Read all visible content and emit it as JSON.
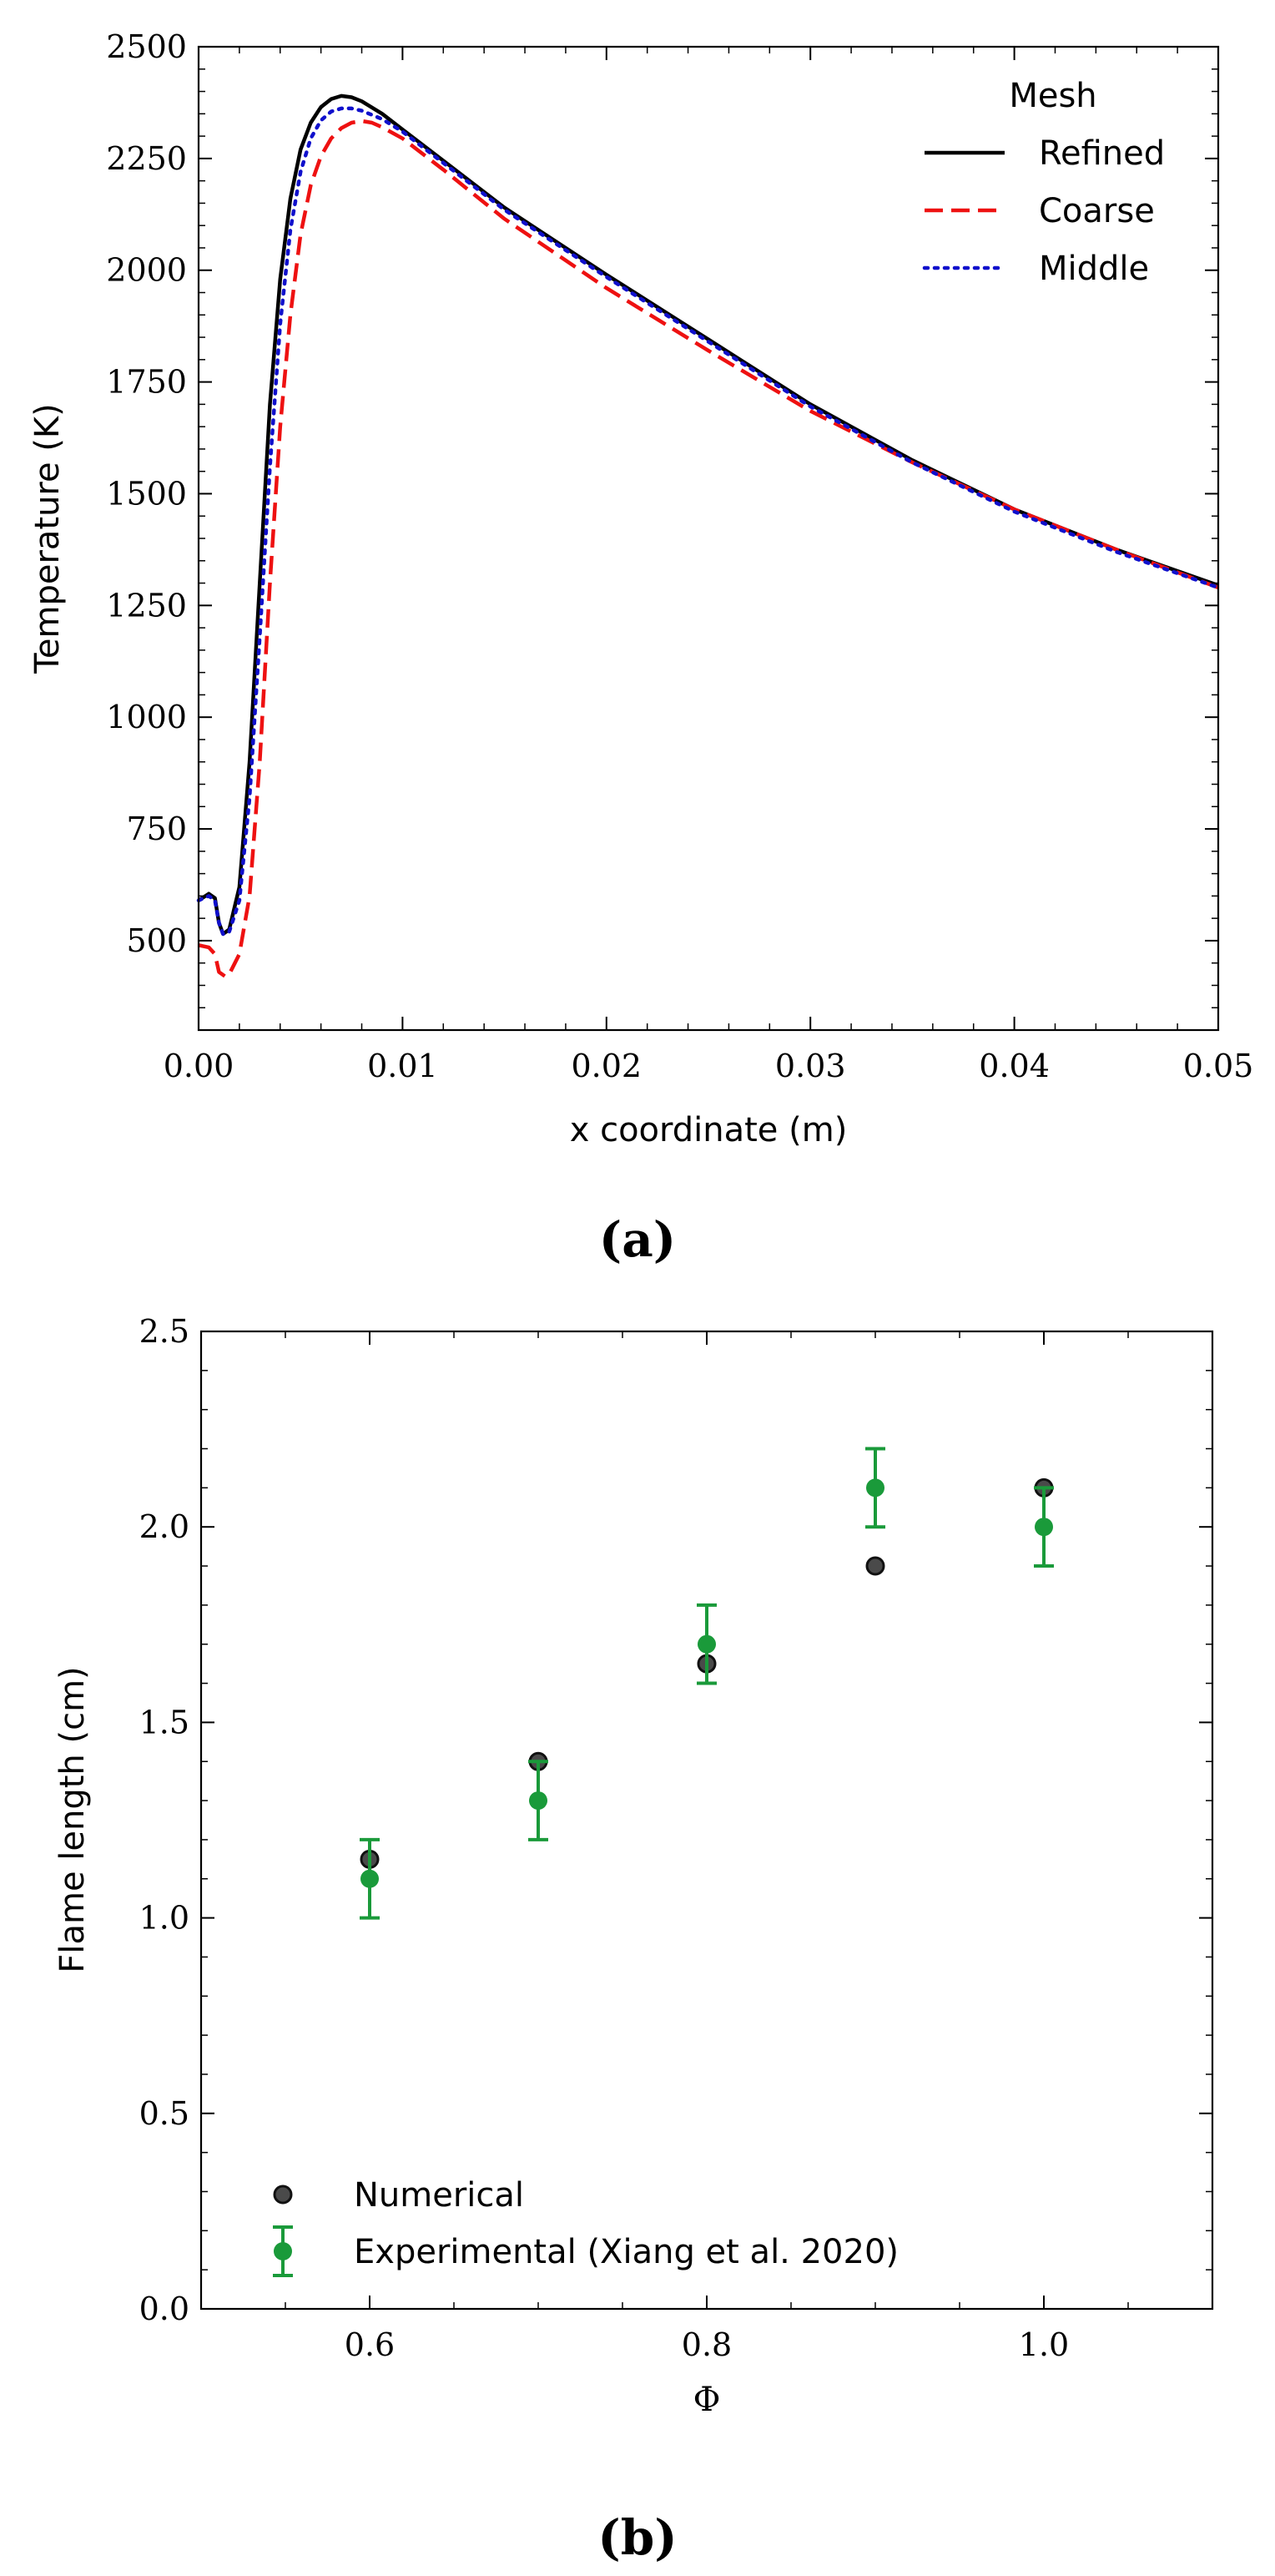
{
  "chart_data": [
    {
      "type": "line",
      "panel_label": "(a)",
      "title": "",
      "xlabel": "x coordinate (m)",
      "ylabel": "Temperature (K)",
      "xlim": [
        0,
        0.05
      ],
      "ylim": [
        300,
        2500
      ],
      "xticks": [
        "0.00",
        "0.01",
        "0.02",
        "0.03",
        "0.04",
        "0.05"
      ],
      "yticks": [
        "500",
        "750",
        "1000",
        "1250",
        "1500",
        "1750",
        "2000",
        "2250",
        "2500"
      ],
      "grid": false,
      "legend": {
        "title": "Mesh",
        "position": "top-right"
      },
      "series": [
        {
          "name": "Refined",
          "color": "#000000",
          "style": "solid",
          "x": [
            0,
            0.0005,
            0.0008,
            0.001,
            0.0012,
            0.0015,
            0.002,
            0.0025,
            0.003,
            0.0035,
            0.004,
            0.0045,
            0.005,
            0.0055,
            0.006,
            0.0065,
            0.007,
            0.0075,
            0.008,
            0.009,
            0.01,
            0.012,
            0.015,
            0.02,
            0.025,
            0.03,
            0.035,
            0.04,
            0.045,
            0.05
          ],
          "y": [
            590,
            605,
            595,
            540,
            515,
            525,
            620,
            900,
            1300,
            1700,
            1980,
            2160,
            2270,
            2330,
            2365,
            2383,
            2390,
            2387,
            2378,
            2350,
            2315,
            2245,
            2140,
            1990,
            1845,
            1700,
            1575,
            1465,
            1375,
            1295
          ]
        },
        {
          "name": "Coarse",
          "color": "#ee1111",
          "style": "dashed",
          "x": [
            0,
            0.0005,
            0.0008,
            0.001,
            0.0013,
            0.0015,
            0.002,
            0.0025,
            0.003,
            0.0035,
            0.004,
            0.0045,
            0.005,
            0.0055,
            0.006,
            0.0065,
            0.007,
            0.0075,
            0.008,
            0.0085,
            0.009,
            0.01,
            0.012,
            0.015,
            0.02,
            0.025,
            0.03,
            0.035,
            0.04,
            0.045,
            0.05
          ],
          "y": [
            490,
            485,
            470,
            430,
            420,
            425,
            470,
            600,
            900,
            1300,
            1650,
            1900,
            2080,
            2190,
            2255,
            2295,
            2318,
            2330,
            2334,
            2330,
            2320,
            2295,
            2225,
            2115,
            1960,
            1820,
            1685,
            1570,
            1465,
            1375,
            1290
          ]
        },
        {
          "name": "Middle",
          "color": "#1010cc",
          "style": "dotted",
          "x": [
            0,
            0.0005,
            0.0008,
            0.001,
            0.0012,
            0.0015,
            0.002,
            0.0025,
            0.003,
            0.0035,
            0.004,
            0.0045,
            0.005,
            0.0055,
            0.006,
            0.0065,
            0.007,
            0.0075,
            0.008,
            0.009,
            0.01,
            0.012,
            0.015,
            0.02,
            0.025,
            0.03,
            0.035,
            0.04,
            0.045,
            0.05
          ],
          "y": [
            590,
            600,
            590,
            540,
            515,
            520,
            590,
            820,
            1180,
            1560,
            1880,
            2090,
            2220,
            2295,
            2335,
            2355,
            2362,
            2362,
            2357,
            2338,
            2310,
            2240,
            2135,
            1985,
            1840,
            1695,
            1570,
            1460,
            1370,
            1290
          ]
        }
      ]
    },
    {
      "type": "scatter",
      "panel_label": "(b)",
      "title": "",
      "xlabel": "Φ",
      "ylabel": "Flame length (cm)",
      "xlim": [
        0.5,
        1.1
      ],
      "ylim": [
        0,
        2.5
      ],
      "xticks": [
        "0.6",
        "0.8",
        "1.0"
      ],
      "yticks": [
        "0.0",
        "0.5",
        "1.0",
        "1.5",
        "2.0",
        "2.5"
      ],
      "grid": false,
      "legend": {
        "position": "bottom-left"
      },
      "series": [
        {
          "name": "Numerical",
          "color": "#222222",
          "marker": "circle",
          "x": [
            0.6,
            0.7,
            0.8,
            0.9,
            1.0
          ],
          "y": [
            1.15,
            1.4,
            1.65,
            1.9,
            2.1
          ]
        },
        {
          "name": "Experimental (Xiang et al. 2020)",
          "color": "#1a9a3a",
          "marker": "circle",
          "x": [
            0.6,
            0.7,
            0.8,
            0.9,
            1.0
          ],
          "y": [
            1.1,
            1.3,
            1.7,
            2.1,
            2.0
          ],
          "yerr": [
            0.1,
            0.1,
            0.1,
            0.1,
            0.1
          ]
        }
      ]
    }
  ]
}
